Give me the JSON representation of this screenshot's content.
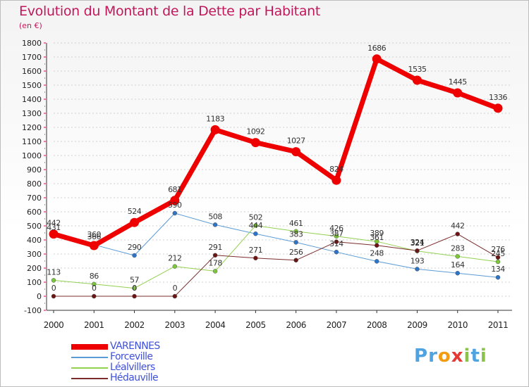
{
  "header": {
    "title": "Evolution du Montant de la Dette par Habitant",
    "subtitle": "(en €)"
  },
  "colors": {
    "title": "#c2185b",
    "legend_text": "#3f51d9",
    "grid": "#d0d0d0",
    "tick_marks": "#e5004f"
  },
  "logo": {
    "text": "Proxiti",
    "letters": [
      {
        "ch": "P",
        "color": "#4fa3e0"
      },
      {
        "ch": "r",
        "color": "#4fa3e0"
      },
      {
        "ch": "o",
        "color": "#f39c12"
      },
      {
        "ch": "x",
        "color": "#e53935"
      },
      {
        "ch": "i",
        "color": "#8bc34a"
      },
      {
        "ch": "t",
        "color": "#4fa3e0"
      },
      {
        "ch": "i",
        "color": "#8bc34a"
      }
    ]
  },
  "chart_data": {
    "type": "line",
    "x": [
      2000,
      2001,
      2002,
      2003,
      2004,
      2005,
      2006,
      2007,
      2008,
      2009,
      2010,
      2011
    ],
    "ylim": [
      -100,
      1800
    ],
    "yticks": [
      -100,
      0,
      100,
      200,
      300,
      400,
      500,
      600,
      700,
      800,
      900,
      1000,
      1100,
      1200,
      1300,
      1400,
      1500,
      1600,
      1700,
      1800
    ],
    "grid": "horizontal-dashed",
    "legend_position": "bottom-left",
    "series": [
      {
        "name": "Forceville",
        "color": "#5b9bd5",
        "marker": "#2e75c7",
        "width": 1,
        "values": [
          431,
          366,
          290,
          590,
          508,
          444,
          383,
          314,
          248,
          193,
          164,
          134
        ]
      },
      {
        "name": "Léalvillers",
        "color": "#92d050",
        "marker": "#7cc63a",
        "width": 1,
        "values": [
          113,
          86,
          57,
          212,
          178,
          502,
          461,
          426,
          389,
          321,
          283,
          245
        ]
      },
      {
        "name": "Hédauville",
        "color": "#7b2c2c",
        "marker": "#6b1414",
        "width": 1,
        "values": [
          0,
          0,
          0,
          0,
          291,
          271,
          256,
          387,
          361,
          324,
          442,
          276
        ]
      },
      {
        "name": "VARENNES",
        "color": "#ee0000",
        "marker": "#ee0000",
        "width": 7,
        "values": [
          442,
          360,
          524,
          681,
          1183,
          1092,
          1027,
          824,
          1686,
          1535,
          1445,
          1336
        ]
      }
    ]
  }
}
